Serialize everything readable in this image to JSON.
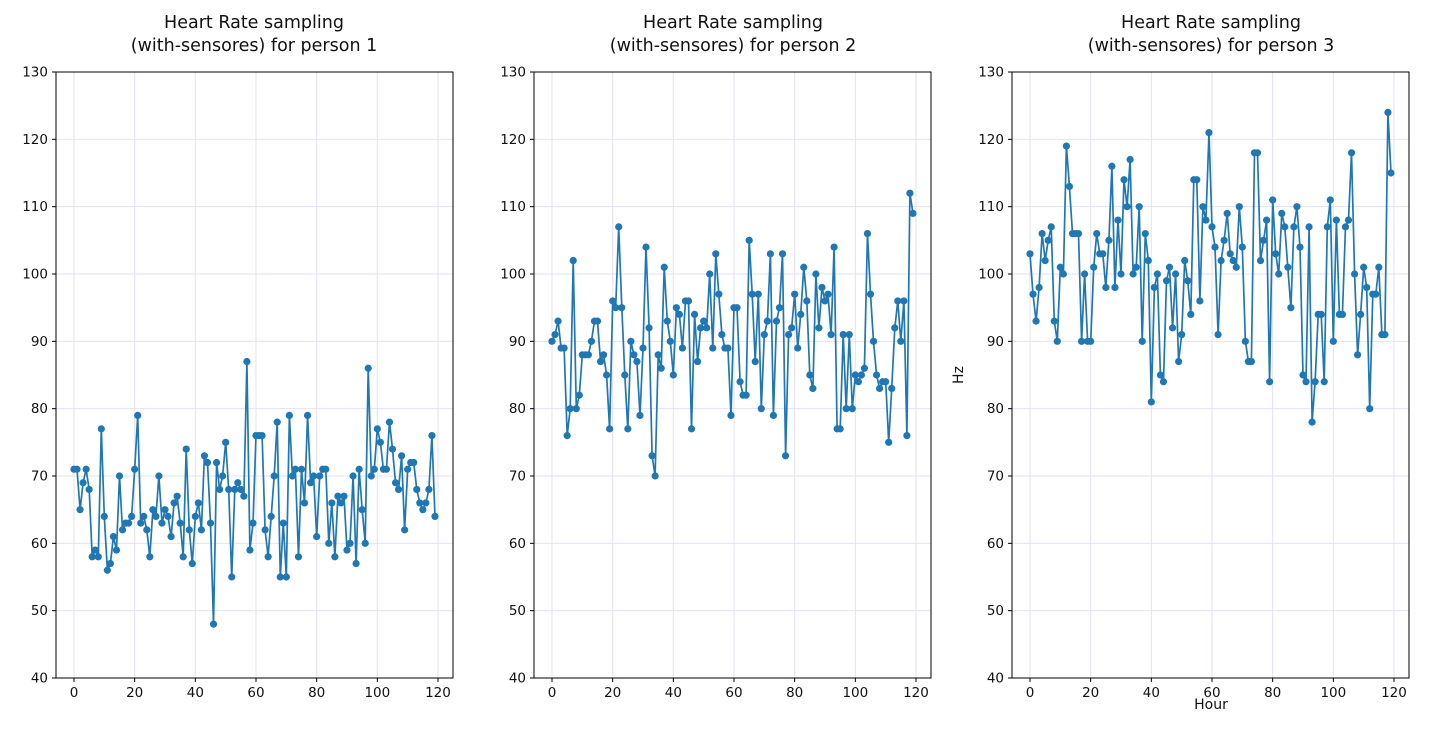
{
  "figure": {
    "background": "#ffffff"
  },
  "style": {
    "series_color": "#1f77b4",
    "grid_color": "#e2e2f6",
    "axis_color": "#000000",
    "text_color": "#111111"
  },
  "chart_data": [
    {
      "type": "line",
      "title": "Heart Rate sampling (with-sensores) for person 1",
      "title_lines": [
        "Heart Rate sampling",
        "(with-sensores) for person 1"
      ],
      "xlabel": "",
      "ylabel": "",
      "x_start": 0,
      "x_step": 1,
      "xlim": [
        -6,
        125
      ],
      "ylim": [
        40,
        130
      ],
      "x_ticks": [
        0,
        20,
        40,
        60,
        80,
        100,
        120
      ],
      "y_ticks": [
        40,
        50,
        60,
        70,
        80,
        90,
        100,
        110,
        120,
        130
      ],
      "grid": true,
      "marker": "circle",
      "values": [
        71,
        71,
        65,
        69,
        71,
        68,
        58,
        59,
        58,
        77,
        64,
        56,
        57,
        61,
        59,
        70,
        62,
        63,
        63,
        64,
        71,
        79,
        63,
        64,
        62,
        58,
        65,
        64,
        70,
        63,
        65,
        64,
        61,
        66,
        67,
        63,
        58,
        74,
        62,
        57,
        64,
        66,
        62,
        73,
        72,
        63,
        48,
        72,
        68,
        70,
        75,
        68,
        55,
        68,
        69,
        68,
        67,
        87,
        59,
        63,
        76,
        76,
        76,
        62,
        58,
        64,
        70,
        78,
        55,
        63,
        55,
        79,
        70,
        71,
        58,
        71,
        66,
        79,
        69,
        70,
        61,
        70,
        71,
        71,
        60,
        66,
        58,
        67,
        66,
        67,
        59,
        60,
        70,
        57,
        71,
        65,
        60,
        86,
        70,
        71,
        77,
        75,
        71,
        71,
        78,
        74,
        69,
        68,
        73,
        62,
        71,
        72,
        72,
        68,
        66,
        65,
        66,
        68,
        76,
        64
      ]
    },
    {
      "type": "line",
      "title": "Heart Rate sampling (with-sensores) for person 2",
      "title_lines": [
        "Heart Rate sampling",
        "(with-sensores) for person 2"
      ],
      "xlabel": "",
      "ylabel": "",
      "x_start": 0,
      "x_step": 1,
      "xlim": [
        -6,
        125
      ],
      "ylim": [
        40,
        130
      ],
      "x_ticks": [
        0,
        20,
        40,
        60,
        80,
        100,
        120
      ],
      "y_ticks": [
        40,
        50,
        60,
        70,
        80,
        90,
        100,
        110,
        120,
        130
      ],
      "grid": true,
      "marker": "circle",
      "values": [
        90,
        91,
        93,
        89,
        89,
        76,
        80,
        102,
        80,
        82,
        88,
        88,
        88,
        90,
        93,
        93,
        87,
        88,
        85,
        77,
        96,
        95,
        107,
        95,
        85,
        77,
        90,
        88,
        87,
        79,
        89,
        104,
        92,
        73,
        70,
        88,
        86,
        101,
        93,
        90,
        85,
        95,
        94,
        89,
        96,
        96,
        77,
        94,
        87,
        92,
        93,
        92,
        100,
        89,
        103,
        97,
        91,
        89,
        89,
        79,
        95,
        95,
        84,
        82,
        82,
        105,
        97,
        87,
        97,
        80,
        91,
        93,
        103,
        79,
        93,
        95,
        103,
        73,
        91,
        92,
        97,
        89,
        94,
        101,
        96,
        85,
        83,
        100,
        92,
        98,
        96,
        97,
        91,
        104,
        77,
        77,
        91,
        80,
        91,
        80,
        85,
        84,
        85,
        86,
        106,
        97,
        90,
        85,
        83,
        84,
        84,
        75,
        83,
        92,
        96,
        90,
        96,
        76,
        112,
        109
      ]
    },
    {
      "type": "line",
      "title": "Heart Rate sampling (with-sensores) for person 3",
      "title_lines": [
        "Heart Rate sampling",
        "(with-sensores) for person 3"
      ],
      "xlabel": "Hour",
      "ylabel": "Hz",
      "x_start": 0,
      "x_step": 1,
      "xlim": [
        -6,
        125
      ],
      "ylim": [
        40,
        130
      ],
      "x_ticks": [
        0,
        20,
        40,
        60,
        80,
        100,
        120
      ],
      "y_ticks": [
        40,
        50,
        60,
        70,
        80,
        90,
        100,
        110,
        120,
        130
      ],
      "grid": true,
      "marker": "circle",
      "values": [
        103,
        97,
        93,
        98,
        106,
        102,
        105,
        107,
        93,
        90,
        101,
        100,
        119,
        113,
        106,
        106,
        106,
        90,
        100,
        90,
        90,
        101,
        106,
        103,
        103,
        98,
        105,
        116,
        98,
        108,
        100,
        114,
        110,
        117,
        100,
        101,
        110,
        90,
        106,
        102,
        81,
        98,
        100,
        85,
        84,
        99,
        101,
        92,
        100,
        87,
        91,
        102,
        99,
        94,
        114,
        114,
        96,
        110,
        108,
        121,
        107,
        104,
        91,
        102,
        105,
        109,
        103,
        102,
        101,
        110,
        104,
        90,
        87,
        87,
        118,
        118,
        102,
        105,
        108,
        84,
        111,
        103,
        100,
        109,
        107,
        101,
        95,
        107,
        110,
        104,
        85,
        84,
        107,
        78,
        84,
        94,
        94,
        84,
        107,
        111,
        90,
        108,
        94,
        94,
        107,
        108,
        118,
        100,
        88,
        94,
        101,
        98,
        80,
        97,
        97,
        101,
        91,
        91,
        124,
        115
      ]
    }
  ]
}
